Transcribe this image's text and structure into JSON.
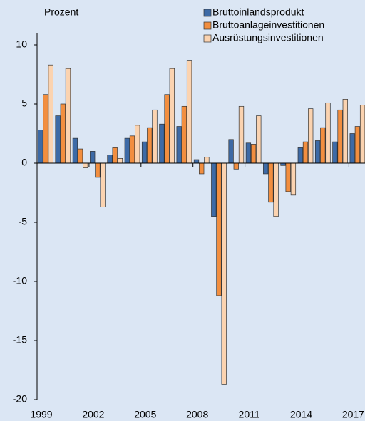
{
  "chart_data": {
    "type": "bar",
    "y_label": "Prozent",
    "categories": [
      "1999",
      null,
      null,
      "2002",
      null,
      null,
      "2005",
      null,
      null,
      "2008",
      null,
      null,
      "2011",
      null,
      null,
      "2014",
      null,
      null,
      "2017"
    ],
    "series": [
      {
        "name": "Bruttoinlandsprodukt",
        "color": "#3d6aa6",
        "values": [
          2.8,
          4.0,
          2.1,
          1.0,
          0.7,
          2.1,
          1.8,
          3.3,
          3.1,
          0.3,
          -4.5,
          2.0,
          1.7,
          -0.9,
          -0.2,
          1.3,
          1.9,
          1.8,
          2.5
        ]
      },
      {
        "name": "Bruttoanlageinvestitionen",
        "color": "#f28e3f",
        "values": [
          5.8,
          5.0,
          1.2,
          -1.2,
          1.3,
          2.3,
          3.0,
          5.8,
          4.8,
          -0.9,
          -11.2,
          -0.5,
          1.6,
          -3.3,
          -2.4,
          1.8,
          3.0,
          4.5,
          3.1
        ]
      },
      {
        "name": "Ausrüstungsinvestitionen",
        "color": "#fbd3b0",
        "values": [
          8.3,
          8.0,
          -0.4,
          -3.7,
          0.4,
          3.2,
          4.5,
          8.0,
          8.7,
          0.5,
          -18.7,
          4.8,
          4.0,
          -4.5,
          -2.7,
          4.6,
          5.1,
          5.4,
          4.9
        ]
      }
    ],
    "ylim": [
      -20,
      11
    ],
    "yticks": [
      -20,
      -15,
      -10,
      -5,
      0,
      5,
      10
    ]
  }
}
